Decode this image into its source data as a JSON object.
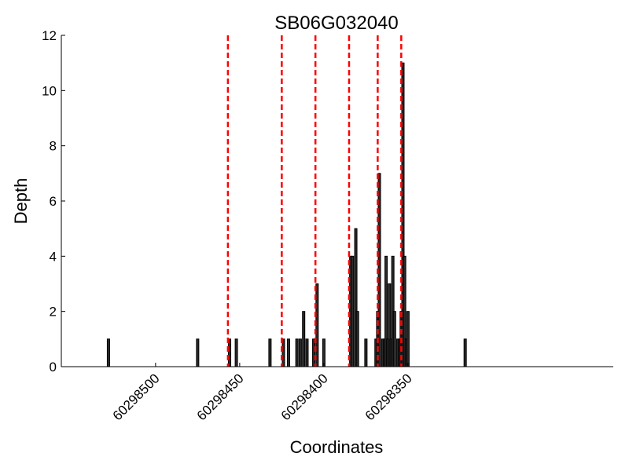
{
  "chart_data": {
    "type": "bar",
    "title": "SB06G032040",
    "xlabel": "Coordinates",
    "ylabel": "Depth",
    "x_reversed": true,
    "xlim": [
      60298228,
      60298556
    ],
    "ylim": [
      0,
      12
    ],
    "yticks": [
      0,
      2,
      4,
      6,
      8,
      10,
      12
    ],
    "xticks": [
      60298500,
      60298450,
      60298400,
      60298350
    ],
    "grid": false,
    "colors": {
      "bar_fill": "#2b2b2b",
      "bar_edge": "#000000",
      "boundary_line": "#ff0000"
    },
    "bars": [
      {
        "x": 60298528,
        "y": 1
      },
      {
        "x": 60298475,
        "y": 1
      },
      {
        "x": 60298456,
        "y": 1
      },
      {
        "x": 60298452,
        "y": 1
      },
      {
        "x": 60298432,
        "y": 1
      },
      {
        "x": 60298424,
        "y": 1
      },
      {
        "x": 60298421,
        "y": 1
      },
      {
        "x": 60298416,
        "y": 1
      },
      {
        "x": 60298414,
        "y": 1
      },
      {
        "x": 60298412,
        "y": 2
      },
      {
        "x": 60298410,
        "y": 1
      },
      {
        "x": 60298406,
        "y": 1
      },
      {
        "x": 60298404,
        "y": 3
      },
      {
        "x": 60298400,
        "y": 1
      },
      {
        "x": 60298384,
        "y": 4
      },
      {
        "x": 60298383,
        "y": 4
      },
      {
        "x": 60298381,
        "y": 5
      },
      {
        "x": 60298380,
        "y": 2
      },
      {
        "x": 60298375,
        "y": 1
      },
      {
        "x": 60298369,
        "y": 1
      },
      {
        "x": 60298368,
        "y": 2
      },
      {
        "x": 60298367,
        "y": 7
      },
      {
        "x": 60298365,
        "y": 1
      },
      {
        "x": 60298364,
        "y": 1
      },
      {
        "x": 60298363,
        "y": 4
      },
      {
        "x": 60298362,
        "y": 1
      },
      {
        "x": 60298361,
        "y": 3
      },
      {
        "x": 60298360,
        "y": 1
      },
      {
        "x": 60298359,
        "y": 4
      },
      {
        "x": 60298358,
        "y": 2
      },
      {
        "x": 60298356,
        "y": 1
      },
      {
        "x": 60298355,
        "y": 1
      },
      {
        "x": 60298354,
        "y": 2
      },
      {
        "x": 60298353,
        "y": 11
      },
      {
        "x": 60298352,
        "y": 4
      },
      {
        "x": 60298351,
        "y": 1
      },
      {
        "x": 60298350,
        "y": 2
      },
      {
        "x": 60298316,
        "y": 1
      }
    ],
    "boundaries": [
      60298457,
      60298425,
      60298405,
      60298385,
      60298368,
      60298354
    ]
  }
}
